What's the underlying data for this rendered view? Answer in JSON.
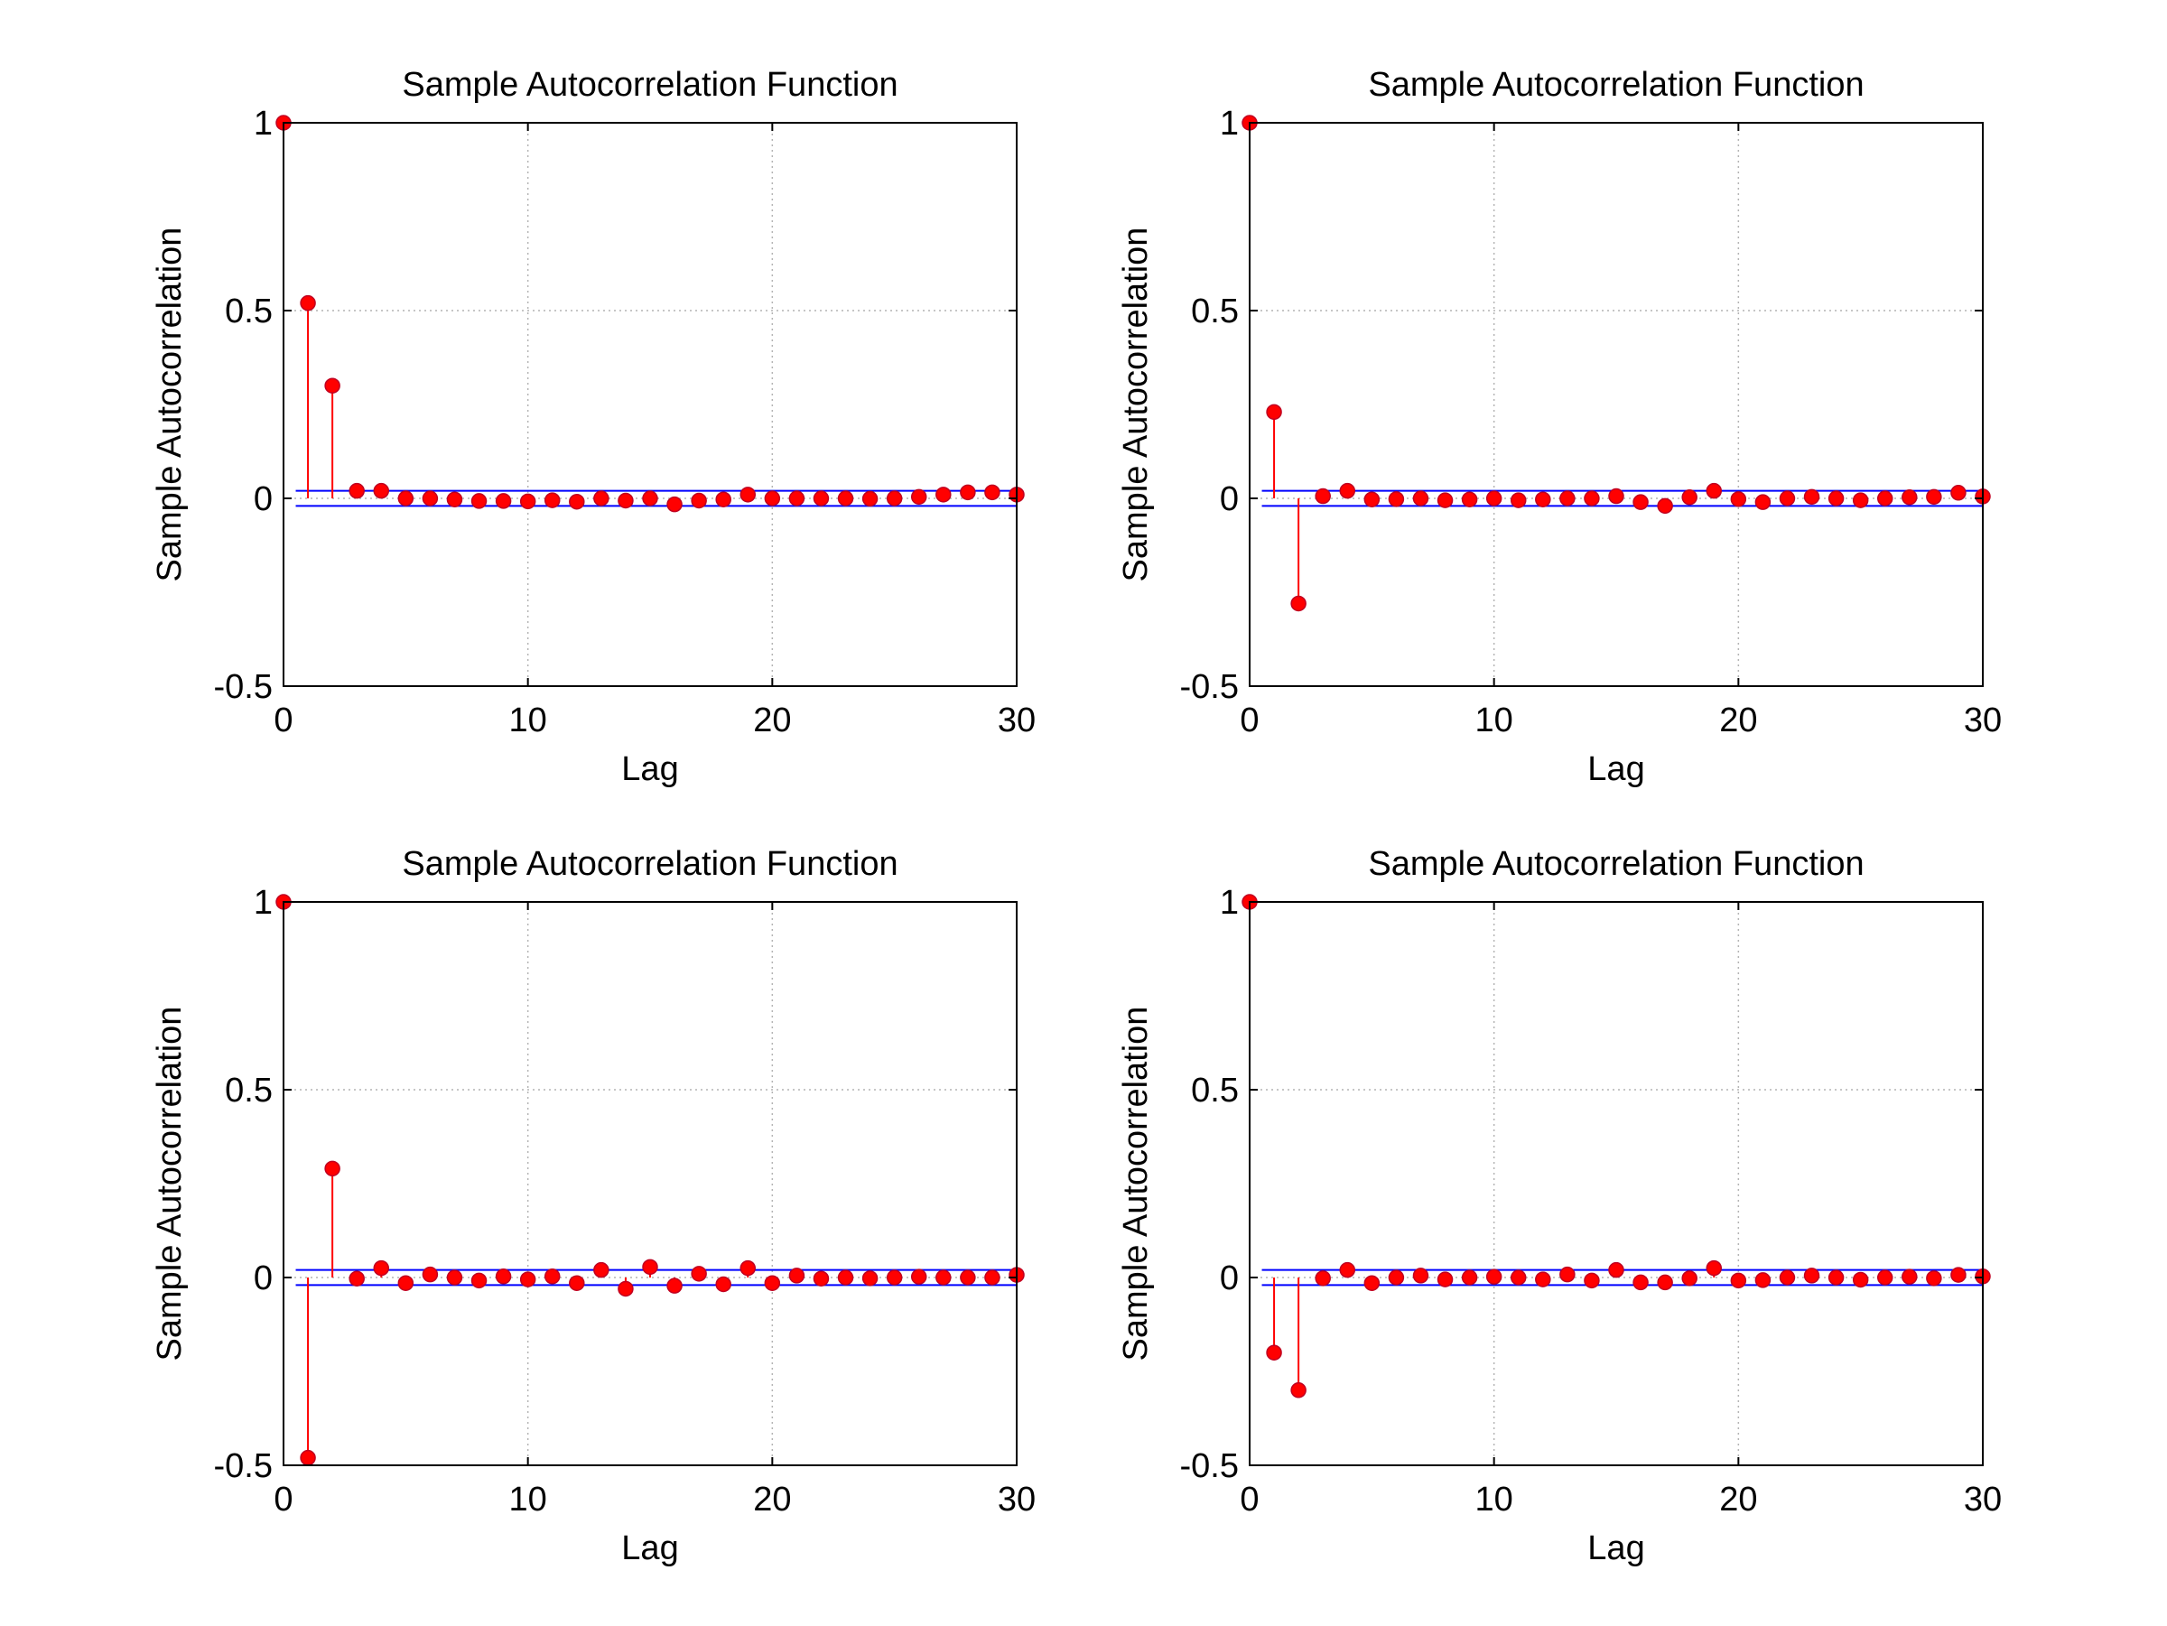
{
  "chart_data": [
    {
      "type": "stem",
      "title": "Sample Autocorrelation Function",
      "xlabel": "Lag",
      "ylabel": "Sample Autocorrelation",
      "xlim": [
        0,
        30
      ],
      "ylim": [
        -0.5,
        1
      ],
      "xticks": [
        "0",
        "10",
        "20",
        "30"
      ],
      "yticks": [
        "-0.5",
        "0",
        "0.5",
        "1"
      ],
      "grid": true,
      "conf_bound": 0.02,
      "lags": [
        0,
        1,
        2,
        3,
        4,
        5,
        6,
        7,
        8,
        9,
        10,
        11,
        12,
        13,
        14,
        15,
        16,
        17,
        18,
        19,
        20,
        21,
        22,
        23,
        24,
        25,
        26,
        27,
        28,
        29,
        30
      ],
      "values": [
        1,
        0.52,
        0.3,
        0.02,
        0.02,
        0.0,
        0.0,
        -0.003,
        -0.007,
        -0.007,
        -0.008,
        -0.005,
        -0.009,
        0.0,
        -0.006,
        0.0,
        -0.016,
        -0.006,
        -0.003,
        0.01,
        0.0,
        0.0,
        0.0,
        0.0,
        -0.001,
        0.0,
        0.004,
        0.01,
        0.016,
        0.016,
        0.01
      ]
    },
    {
      "type": "stem",
      "title": "Sample Autocorrelation Function",
      "xlabel": "Lag",
      "ylabel": "Sample Autocorrelation",
      "xlim": [
        0,
        30
      ],
      "ylim": [
        -0.5,
        1
      ],
      "xticks": [
        "0",
        "10",
        "20",
        "30"
      ],
      "yticks": [
        "-0.5",
        "0",
        "0.5",
        "1"
      ],
      "grid": true,
      "conf_bound": 0.02,
      "lags": [
        0,
        1,
        2,
        3,
        4,
        5,
        6,
        7,
        8,
        9,
        10,
        11,
        12,
        13,
        14,
        15,
        16,
        17,
        18,
        19,
        20,
        21,
        22,
        23,
        24,
        25,
        26,
        27,
        28,
        29,
        30
      ],
      "values": [
        1,
        0.23,
        -0.28,
        0.006,
        0.02,
        -0.003,
        -0.002,
        0.0,
        -0.005,
        -0.003,
        0.0,
        -0.005,
        -0.003,
        0.0,
        0.0,
        0.006,
        -0.01,
        -0.02,
        0.003,
        0.02,
        -0.002,
        -0.01,
        0.0,
        0.004,
        0.0,
        -0.005,
        0.0,
        0.003,
        0.004,
        0.015,
        0.005
      ]
    },
    {
      "type": "stem",
      "title": "Sample Autocorrelation Function",
      "xlabel": "Lag",
      "ylabel": "Sample Autocorrelation",
      "xlim": [
        0,
        30
      ],
      "ylim": [
        -0.5,
        1
      ],
      "xticks": [
        "0",
        "10",
        "20",
        "30"
      ],
      "yticks": [
        "-0.5",
        "0",
        "0.5",
        "1"
      ],
      "grid": true,
      "conf_bound": 0.02,
      "lags": [
        0,
        1,
        2,
        3,
        4,
        5,
        6,
        7,
        8,
        9,
        10,
        11,
        12,
        13,
        14,
        15,
        16,
        17,
        18,
        19,
        20,
        21,
        22,
        23,
        24,
        25,
        26,
        27,
        28,
        29,
        30
      ],
      "values": [
        1,
        -0.48,
        0.29,
        -0.003,
        0.025,
        -0.015,
        0.008,
        0.0,
        -0.008,
        0.003,
        -0.005,
        0.003,
        -0.015,
        0.02,
        -0.03,
        0.028,
        -0.022,
        0.01,
        -0.018,
        0.025,
        -0.015,
        0.005,
        -0.003,
        0.0,
        -0.002,
        0.0,
        0.002,
        0.0,
        0.0,
        0.0,
        0.007
      ]
    },
    {
      "type": "stem",
      "title": "Sample Autocorrelation Function",
      "xlabel": "Lag",
      "ylabel": "Sample Autocorrelation",
      "xlim": [
        0,
        30
      ],
      "ylim": [
        -0.5,
        1
      ],
      "xticks": [
        "0",
        "10",
        "20",
        "30"
      ],
      "yticks": [
        "-0.5",
        "0",
        "0.5",
        "1"
      ],
      "grid": true,
      "conf_bound": 0.02,
      "lags": [
        0,
        1,
        2,
        3,
        4,
        5,
        6,
        7,
        8,
        9,
        10,
        11,
        12,
        13,
        14,
        15,
        16,
        17,
        18,
        19,
        20,
        21,
        22,
        23,
        24,
        25,
        26,
        27,
        28,
        29,
        30
      ],
      "values": [
        1,
        -0.2,
        -0.3,
        -0.002,
        0.02,
        -0.015,
        0.0,
        0.005,
        -0.005,
        0.0,
        0.002,
        0.0,
        -0.005,
        0.008,
        -0.008,
        0.02,
        -0.013,
        -0.013,
        -0.002,
        0.025,
        -0.008,
        -0.007,
        0.0,
        0.005,
        0.0,
        -0.006,
        0.0,
        0.002,
        -0.002,
        0.007,
        0.003
      ]
    }
  ],
  "colors": {
    "stem": "#ff0000",
    "marker": "#ff0000",
    "marker_edge": "#c00020",
    "bounds": "#0000ff",
    "grid": "#b4b4b4",
    "axes": "#000000"
  }
}
